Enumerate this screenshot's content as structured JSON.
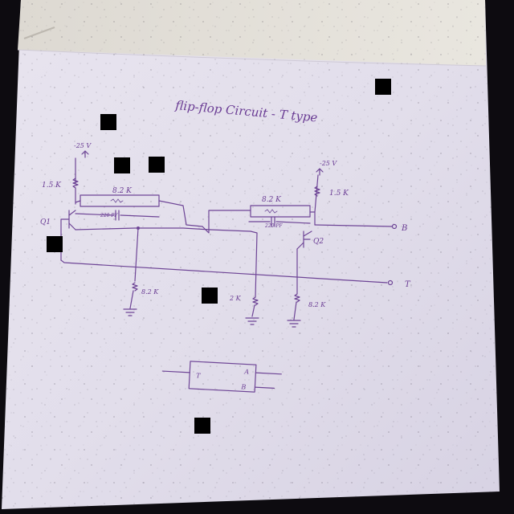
{
  "title": "flip-flop Circuit - T type",
  "labels": {
    "supply_left": "-25 V",
    "supply_right": "-25 V",
    "r_left_collector": "1.5 K",
    "r_right_collector": "1.5 K",
    "r_left_top": "8.2 K",
    "r_right_top": "8.2 K",
    "cap_left": "220 PF",
    "cap_right": "220 PF",
    "q1": "Q1",
    "q2": "Q2",
    "out_b": "B",
    "in_t": "T",
    "r_bottom_left": "8.2 K",
    "r_bottom_mid": "2 K",
    "r_bottom_right": "8.2 K"
  },
  "block": {
    "input": "T",
    "out_a": "A",
    "out_b": "B"
  },
  "colors": {
    "ink": "#6e4596",
    "paper": "#e4e0ee",
    "background": "#0d0b10"
  }
}
